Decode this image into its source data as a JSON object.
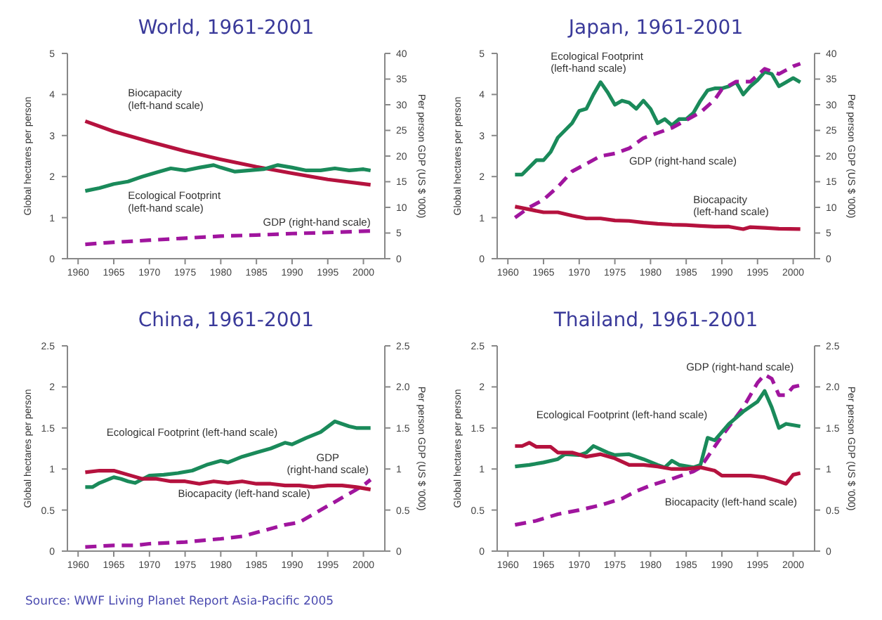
{
  "chart_data": [
    {
      "type": "line",
      "title": "World, 1961-2001",
      "ylabel": "Global hectares per person",
      "y2label": "Per person GDP (US $ '000)",
      "xlim": [
        1958.5,
        2003
      ],
      "xticks": [
        1960,
        1965,
        1970,
        1975,
        1980,
        1985,
        1990,
        1995,
        2000
      ],
      "ylim": [
        0,
        5
      ],
      "yticks": [
        0,
        1,
        2,
        3,
        4,
        5
      ],
      "y2lim": [
        0,
        40
      ],
      "y2ticks": [
        0,
        5,
        10,
        15,
        20,
        25,
        30,
        35,
        40
      ],
      "series": [
        {
          "name": "Biocapacity (left-hand scale)",
          "color": "#b5123e",
          "x": [
            1961,
            1965,
            1970,
            1975,
            1980,
            1985,
            1990,
            1995,
            2001
          ],
          "values": [
            3.35,
            3.1,
            2.85,
            2.62,
            2.42,
            2.24,
            2.08,
            1.93,
            1.8
          ]
        },
        {
          "name": "Ecological Footprint (left-hand scale)",
          "color": "#1a8a5a",
          "x": [
            1961,
            1963,
            1965,
            1967,
            1969,
            1971,
            1973,
            1975,
            1977,
            1979,
            1980,
            1982,
            1984,
            1986,
            1988,
            1990,
            1992,
            1994,
            1996,
            1998,
            2000,
            2001
          ],
          "values": [
            1.65,
            1.72,
            1.82,
            1.88,
            2.0,
            2.1,
            2.2,
            2.15,
            2.22,
            2.28,
            2.22,
            2.12,
            2.15,
            2.18,
            2.28,
            2.22,
            2.15,
            2.15,
            2.2,
            2.15,
            2.18,
            2.15
          ]
        },
        {
          "name": "GDP (right-hand scale)",
          "color": "#a0159e",
          "axis": "y2",
          "line_style": "dashed",
          "x": [
            1961,
            1965,
            1970,
            1975,
            1980,
            1985,
            1990,
            1995,
            2001
          ],
          "values": [
            2.8,
            3.2,
            3.6,
            4.0,
            4.4,
            4.6,
            4.9,
            5.1,
            5.4
          ]
        }
      ]
    },
    {
      "type": "line",
      "title": "Japan, 1961-2001",
      "ylabel": "Global hectares per person",
      "y2label": "Per person GDP (US $ '000)",
      "xlim": [
        1958.5,
        2003
      ],
      "xticks": [
        1960,
        1965,
        1970,
        1975,
        1980,
        1985,
        1990,
        1995,
        2000
      ],
      "ylim": [
        0,
        5
      ],
      "yticks": [
        0,
        1,
        2,
        3,
        4,
        5
      ],
      "y2lim": [
        0,
        40
      ],
      "y2ticks": [
        0,
        5,
        10,
        15,
        20,
        25,
        30,
        35,
        40
      ],
      "series": [
        {
          "name": "Ecological Footprint (left-hand scale)",
          "color": "#1a8a5a",
          "x": [
            1961,
            1962,
            1964,
            1965,
            1966,
            1967,
            1969,
            1970,
            1971,
            1972,
            1973,
            1974,
            1975,
            1976,
            1977,
            1978,
            1979,
            1980,
            1981,
            1982,
            1983,
            1984,
            1985,
            1986,
            1987,
            1988,
            1989,
            1990,
            1991,
            1992,
            1993,
            1994,
            1995,
            1996,
            1997,
            1998,
            1999,
            2000,
            2001
          ],
          "values": [
            2.05,
            2.05,
            2.4,
            2.4,
            2.6,
            2.95,
            3.3,
            3.6,
            3.65,
            4.0,
            4.3,
            4.05,
            3.75,
            3.85,
            3.8,
            3.65,
            3.85,
            3.65,
            3.3,
            3.4,
            3.25,
            3.4,
            3.4,
            3.55,
            3.85,
            4.1,
            4.15,
            4.15,
            4.2,
            4.3,
            4.0,
            4.2,
            4.35,
            4.55,
            4.5,
            4.2,
            4.3,
            4.4,
            4.3
          ]
        },
        {
          "name": "GDP (right-hand scale)",
          "color": "#a0159e",
          "axis": "y2",
          "line_style": "dashed",
          "x": [
            1961,
            1963,
            1965,
            1967,
            1969,
            1971,
            1973,
            1975,
            1977,
            1979,
            1981,
            1983,
            1985,
            1987,
            1989,
            1990,
            1992,
            1994,
            1996,
            1998,
            2000,
            2001
          ],
          "values": [
            8,
            10,
            11.5,
            14,
            17,
            18.5,
            20,
            20.5,
            21.5,
            23.5,
            24.5,
            25.5,
            27,
            28.5,
            31,
            33,
            34.5,
            34.5,
            37,
            36,
            37.5,
            38
          ]
        },
        {
          "name": "Biocapacity (left-hand scale)",
          "color": "#b5123e",
          "x": [
            1961,
            1963,
            1965,
            1967,
            1969,
            1971,
            1973,
            1975,
            1977,
            1979,
            1981,
            1983,
            1985,
            1987,
            1989,
            1991,
            1992,
            1993,
            1994,
            1996,
            1998,
            2001
          ],
          "values": [
            1.27,
            1.2,
            1.13,
            1.13,
            1.05,
            0.98,
            0.98,
            0.93,
            0.92,
            0.88,
            0.85,
            0.83,
            0.82,
            0.8,
            0.78,
            0.78,
            0.75,
            0.72,
            0.77,
            0.75,
            0.73,
            0.72
          ]
        }
      ]
    },
    {
      "type": "line",
      "title": "China, 1961-2001",
      "ylabel": "Global hectares per person",
      "y2label": "Per person GDP (US $ '000)",
      "xlim": [
        1958.5,
        2003
      ],
      "xticks": [
        1960,
        1965,
        1970,
        1975,
        1980,
        1985,
        1990,
        1995,
        2000
      ],
      "ylim": [
        0,
        2.5
      ],
      "yticks": [
        0,
        0.5,
        1,
        1.5,
        2,
        2.5
      ],
      "y2lim": [
        0,
        2.5
      ],
      "y2ticks": [
        0,
        0.5,
        1,
        1.5,
        {
          "value": 2,
          "label": "2.0"
        },
        2.5
      ],
      "annotations": [
        "Source: WWF Living Planet Report Asia-Pacific 2005"
      ],
      "series": [
        {
          "name": "Ecological Footprint (left-hand scale)",
          "color": "#1a8a5a",
          "x": [
            1961,
            1962,
            1963,
            1965,
            1966,
            1967,
            1968,
            1970,
            1972,
            1974,
            1976,
            1978,
            1980,
            1981,
            1983,
            1985,
            1987,
            1989,
            1990,
            1992,
            1994,
            1996,
            1998,
            1999,
            2001
          ],
          "values": [
            0.78,
            0.78,
            0.83,
            0.9,
            0.88,
            0.85,
            0.83,
            0.92,
            0.93,
            0.95,
            0.98,
            1.05,
            1.1,
            1.08,
            1.15,
            1.2,
            1.25,
            1.32,
            1.3,
            1.38,
            1.45,
            1.58,
            1.52,
            1.5,
            1.5
          ]
        },
        {
          "name": "GDP (right-hand scale)",
          "color": "#a0159e",
          "axis": "y2",
          "line_style": "dashed",
          "x": [
            1961,
            1965,
            1968,
            1970,
            1975,
            1980,
            1983,
            1986,
            1989,
            1991,
            1994,
            1997,
            2000,
            2001
          ],
          "values": [
            0.05,
            0.07,
            0.07,
            0.09,
            0.11,
            0.15,
            0.18,
            0.25,
            0.32,
            0.35,
            0.5,
            0.65,
            0.8,
            0.87
          ]
        },
        {
          "name": "Biocapacity (left-hand scale)",
          "color": "#b5123e",
          "x": [
            1961,
            1963,
            1965,
            1967,
            1969,
            1971,
            1973,
            1975,
            1977,
            1979,
            1981,
            1983,
            1985,
            1987,
            1989,
            1991,
            1993,
            1995,
            1997,
            1999,
            2001
          ],
          "values": [
            0.96,
            0.98,
            0.98,
            0.93,
            0.88,
            0.88,
            0.85,
            0.85,
            0.82,
            0.85,
            0.83,
            0.85,
            0.82,
            0.82,
            0.8,
            0.8,
            0.78,
            0.8,
            0.8,
            0.78,
            0.75
          ]
        }
      ]
    },
    {
      "type": "line",
      "title": "Thailand, 1961-2001",
      "ylabel": "Global hectares per person",
      "y2label": "Per person GDP (US $ '000)",
      "xlim": [
        1958.5,
        2003
      ],
      "xticks": [
        1960,
        1965,
        1970,
        1975,
        1980,
        1985,
        1990,
        1995,
        2000
      ],
      "ylim": [
        0,
        2.5
      ],
      "yticks": [
        0,
        0.5,
        1,
        1.5,
        2,
        2.5
      ],
      "y2lim": [
        0,
        2.5
      ],
      "y2ticks": [
        0,
        0.5,
        1,
        1.5,
        {
          "value": 2,
          "label": "2.0"
        },
        2.5
      ],
      "series": [
        {
          "name": "GDP (right-hand scale)",
          "color": "#a0159e",
          "axis": "y2",
          "line_style": "dashed",
          "x": [
            1961,
            1964,
            1967,
            1970,
            1973,
            1976,
            1978,
            1980,
            1983,
            1986,
            1987,
            1990,
            1993,
            1995,
            1996,
            1997,
            1998,
            1999,
            2000,
            2001
          ],
          "values": [
            0.32,
            0.37,
            0.45,
            0.5,
            0.56,
            0.64,
            0.73,
            0.8,
            0.88,
            0.97,
            1.02,
            1.4,
            1.75,
            2.05,
            2.15,
            2.1,
            1.9,
            1.9,
            2.0,
            2.02
          ]
        },
        {
          "name": "Ecological Footprint (left-hand scale)",
          "color": "#1a8a5a",
          "x": [
            1961,
            1963,
            1965,
            1967,
            1968,
            1970,
            1971,
            1972,
            1974,
            1975,
            1977,
            1979,
            1981,
            1982,
            1983,
            1984,
            1986,
            1987,
            1988,
            1989,
            1991,
            1993,
            1995,
            1996,
            1997,
            1998,
            1999,
            2001
          ],
          "values": [
            1.03,
            1.05,
            1.08,
            1.12,
            1.18,
            1.17,
            1.2,
            1.28,
            1.2,
            1.17,
            1.18,
            1.12,
            1.05,
            1.02,
            1.1,
            1.05,
            1.02,
            1.05,
            1.38,
            1.35,
            1.55,
            1.7,
            1.82,
            1.95,
            1.75,
            1.5,
            1.55,
            1.52
          ]
        },
        {
          "name": "Biocapacity (left-hand scale)",
          "color": "#b5123e",
          "x": [
            1961,
            1962,
            1963,
            1964,
            1966,
            1967,
            1969,
            1971,
            1973,
            1975,
            1977,
            1979,
            1981,
            1983,
            1985,
            1987,
            1989,
            1990,
            1992,
            1994,
            1996,
            1998,
            1999,
            2000,
            2001
          ],
          "values": [
            1.28,
            1.28,
            1.32,
            1.27,
            1.27,
            1.2,
            1.2,
            1.15,
            1.18,
            1.13,
            1.05,
            1.05,
            1.03,
            1.0,
            1.0,
            1.02,
            0.98,
            0.92,
            0.92,
            0.92,
            0.9,
            0.85,
            0.82,
            0.93,
            0.95
          ]
        }
      ]
    }
  ]
}
